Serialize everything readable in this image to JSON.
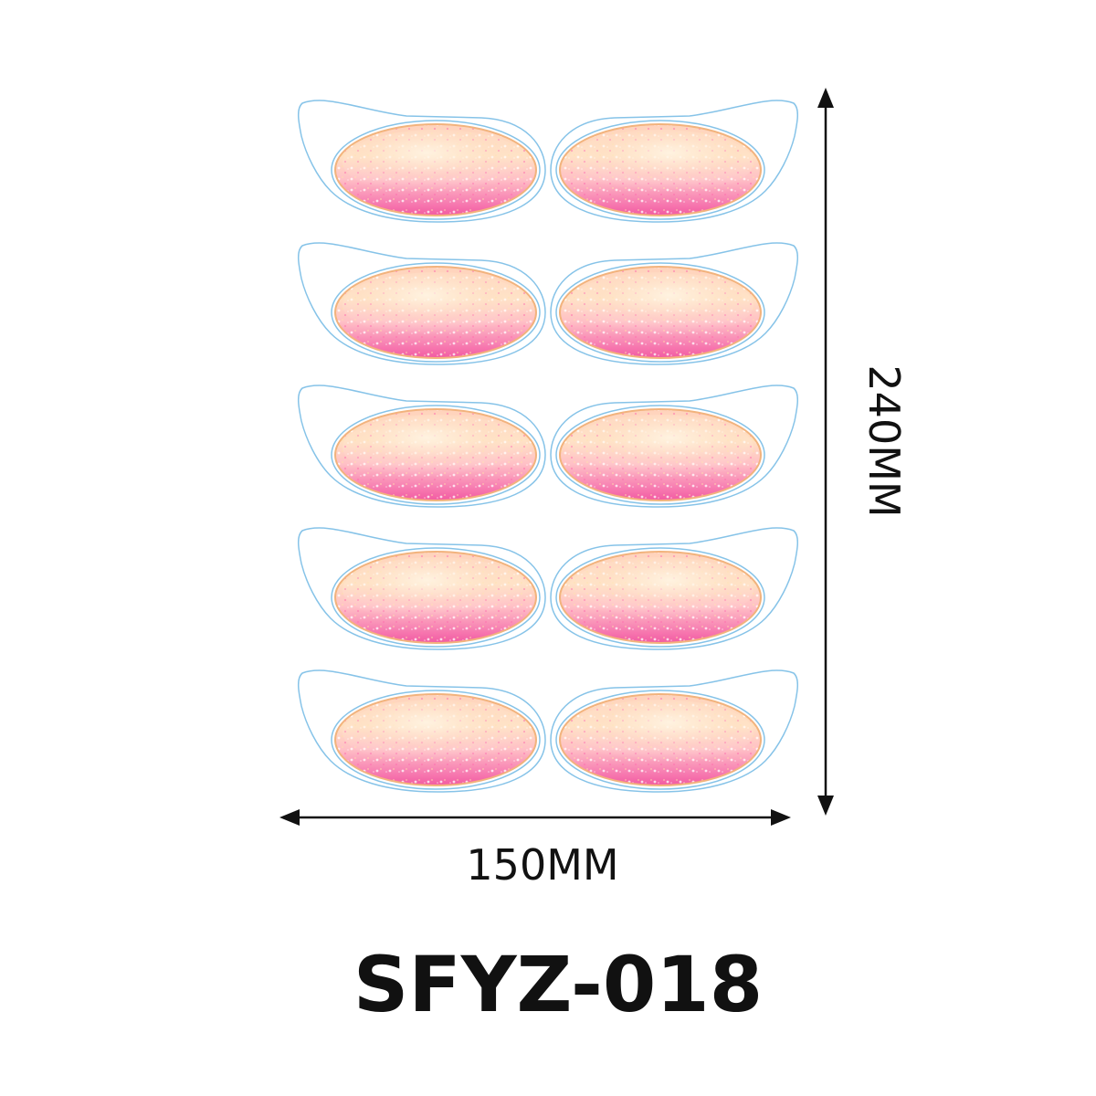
{
  "product": {
    "code": "SFYZ-018"
  },
  "dimensions": {
    "width_label": "150MM",
    "height_label": "240MM"
  },
  "sheet": {
    "rows": 5,
    "columns": 2,
    "sticker_count": 10,
    "sticker_shape": "eye-patch with glitter oval",
    "cut_line_color": "#86c3e8",
    "glitter_colors": [
      "#ffd6a0",
      "#ffb8c8",
      "#ff7fb0",
      "#f25a9a",
      "#fff1d8"
    ]
  }
}
